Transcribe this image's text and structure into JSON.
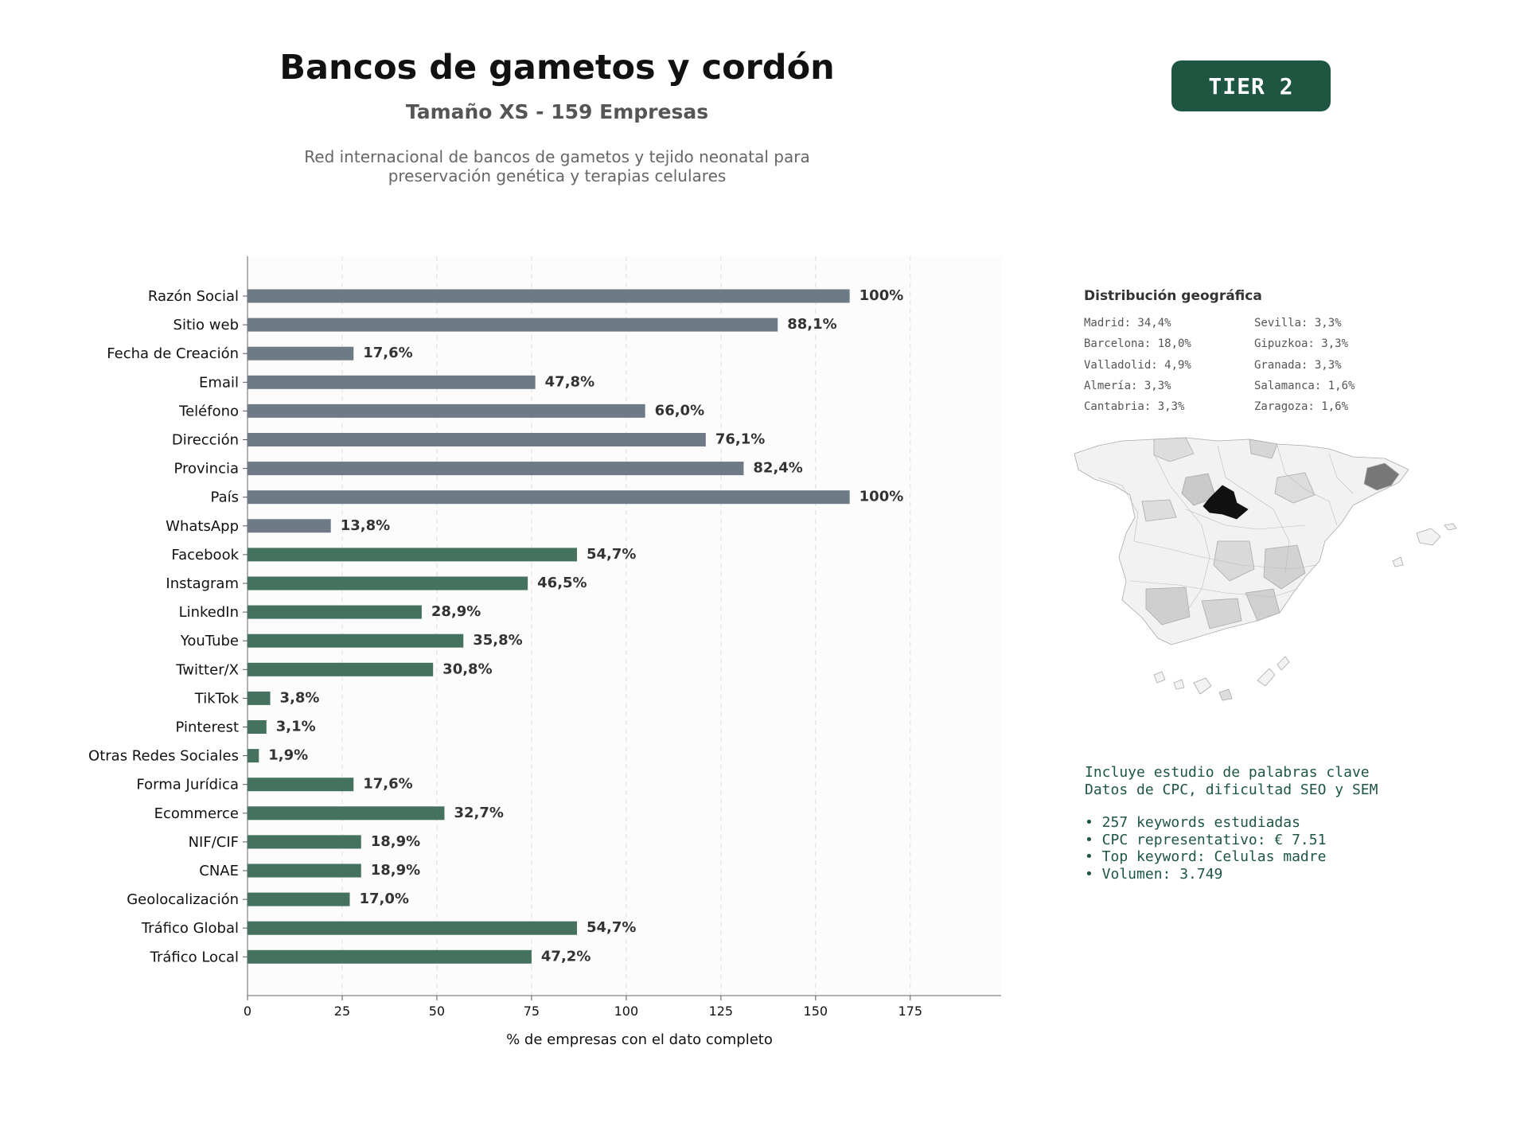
{
  "header": {
    "title": "Bancos de gametos y cordón",
    "subtitle": "Tamaño XS - 159 Empresas",
    "description_lines": [
      "Red internacional de bancos de gametos y tejido neonatal para",
      "preservación genética y terapias celulares"
    ],
    "tier": "TIER 2"
  },
  "colors": {
    "contact_bar": "#6e7a85",
    "social_bar": "#45725f",
    "accent": "#1e5641",
    "map_highlight": "#111111",
    "map_secondary": "#777777"
  },
  "chart_data": {
    "type": "bar",
    "orientation": "horizontal",
    "xlabel": "% de empresas con el dato completo",
    "xlim": [
      0,
      199
    ],
    "xticks": [
      0,
      25,
      50,
      75,
      100,
      125,
      150,
      175
    ],
    "grid": true,
    "categories": [
      "Razón Social",
      "Sitio web",
      "Fecha de Creación",
      "Email",
      "Teléfono",
      "Dirección",
      "Provincia",
      "País",
      "WhatsApp",
      "Facebook",
      "Instagram",
      "LinkedIn",
      "YouTube",
      "Twitter/X",
      "TikTok",
      "Pinterest",
      "Otras Redes Sociales",
      "Forma Jurídica",
      "Ecommerce",
      "NIF/CIF",
      "CNAE",
      "Geolocalización",
      "Tráfico Global",
      "Tráfico Local"
    ],
    "values": [
      159,
      140,
      28,
      76,
      105,
      121,
      131,
      159,
      22,
      87,
      74,
      46,
      57,
      49,
      6,
      5,
      3,
      28,
      52,
      30,
      30,
      27,
      87,
      75
    ],
    "labels": [
      "100%",
      "88,1%",
      "17,6%",
      "47,8%",
      "66,0%",
      "76,1%",
      "82,4%",
      "100%",
      "13,8%",
      "54,7%",
      "46,5%",
      "28,9%",
      "35,8%",
      "30,8%",
      "3,8%",
      "3,1%",
      "1,9%",
      "17,6%",
      "32,7%",
      "18,9%",
      "18,9%",
      "17,0%",
      "54,7%",
      "47,2%"
    ],
    "groups": [
      "contact",
      "contact",
      "contact",
      "contact",
      "contact",
      "contact",
      "contact",
      "contact",
      "contact",
      "social",
      "social",
      "social",
      "social",
      "social",
      "social",
      "social",
      "social",
      "social",
      "social",
      "social",
      "social",
      "social",
      "social",
      "social"
    ]
  },
  "geo": {
    "title": "Distribución geográfica",
    "items": [
      "Madrid: 34,4%",
      "Sevilla: 3,3%",
      "Barcelona: 18,0%",
      "Gipuzkoa: 3,3%",
      "Valladolid: 4,9%",
      "Granada: 3,3%",
      "Almería: 3,3%",
      "Salamanca: 1,6%",
      "Cantabria: 3,3%",
      "Zaragoza: 1,6%"
    ]
  },
  "keywords": {
    "intro_lines": [
      "Incluye estudio de palabras clave",
      "Datos de CPC, dificultad SEO y SEM"
    ],
    "bullets": [
      "• 257 keywords estudiadas",
      "• CPC representativo: € 7.51",
      "• Top keyword: Celulas madre",
      "• Volumen: 3.749"
    ]
  }
}
